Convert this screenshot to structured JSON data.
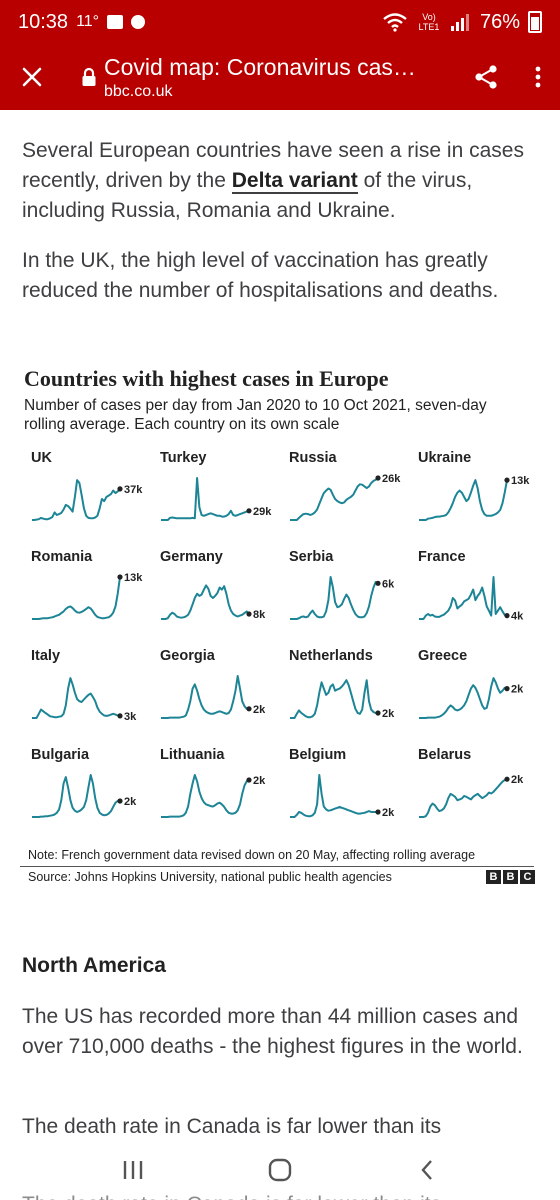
{
  "status_bar": {
    "time": "10:38",
    "temperature": "11°",
    "network": "Vo) LTE1",
    "battery": "76%"
  },
  "toolbar": {
    "title": "Covid map: Coronavirus cases, deaths and vaccinations by country",
    "url": "bbc.co.uk"
  },
  "article": {
    "para1_part1": "Several European countries have seen a rise in cases recently, driven by the ",
    "para1_link": "Delta variant",
    "para1_part2": " of the virus, including Russia, Romania and Ukraine.",
    "para2": "In the UK, the high level of vaccination has greatly reduced the number of hospitalisations and deaths.",
    "section_heading": "North America",
    "para3": "The US has recorded more than 44 million cases and over 710,000 deaths - the highest figures in the world.",
    "para4": "The death rate in Canada is far lower than its",
    "para4_overlap": "The death rate in Canada is far lower than its"
  },
  "chart": {
    "title": "Countries with highest cases in Europe",
    "subtitle": "Number of cases per day from Jan 2020 to 10 Oct 2021, seven-day rolling average. Each country on its own scale",
    "note": "Note: French government data revised down on 20 May, affecting rolling average",
    "source": "Source: Johns Hopkins University, national public health agencies",
    "logo_letters": [
      "B",
      "B",
      "C"
    ],
    "line_color": "#1d8596"
  },
  "chart_data": {
    "type": "line",
    "title": "Countries with highest cases in Europe",
    "subtitle": "Number of cases per day from Jan 2020 to 10 Oct 2021, seven-day rolling average. Each country on its own scale",
    "x_range": [
      "Jan 2020",
      "10 Oct 2021"
    ],
    "series": [
      {
        "name": "UK",
        "latest_label": "37k",
        "latest_value": 37000,
        "shape": [
          0,
          0,
          1,
          2,
          5,
          3,
          2,
          2,
          4,
          7,
          18,
          12,
          14,
          17,
          25,
          36,
          33,
          27,
          20,
          55,
          95,
          88,
          60,
          28,
          10,
          5,
          4,
          4,
          6,
          10,
          28,
          50,
          45,
          55,
          58,
          62,
          70,
          64,
          68,
          74
        ]
      },
      {
        "name": "Turkey",
        "latest_label": "29k",
        "latest_value": 29000,
        "shape": [
          0,
          0,
          0,
          0,
          5,
          6,
          5,
          4,
          4,
          4,
          4,
          4,
          4,
          4,
          5,
          4,
          100,
          30,
          12,
          10,
          12,
          14,
          16,
          14,
          12,
          10,
          10,
          8,
          8,
          10,
          14,
          22,
          12,
          10,
          12,
          14,
          16,
          18,
          20,
          22
        ]
      },
      {
        "name": "Russia",
        "latest_label": "26k",
        "latest_value": 26000,
        "shape": [
          0,
          0,
          0,
          0,
          5,
          10,
          14,
          15,
          14,
          12,
          14,
          18,
          25,
          38,
          52,
          64,
          70,
          75,
          72,
          60,
          50,
          45,
          42,
          40,
          42,
          48,
          52,
          55,
          60,
          70,
          80,
          85,
          84,
          80,
          76,
          80,
          88,
          93,
          96,
          100
        ]
      },
      {
        "name": "Ukraine",
        "latest_label": "13k",
        "latest_value": 13000,
        "shape": [
          0,
          0,
          0,
          0,
          3,
          4,
          5,
          7,
          8,
          8,
          9,
          10,
          12,
          18,
          28,
          40,
          55,
          65,
          70,
          65,
          55,
          45,
          50,
          65,
          82,
          95,
          75,
          45,
          24,
          14,
          10,
          10,
          10,
          12,
          14,
          18,
          24,
          40,
          65,
          95
        ]
      },
      {
        "name": "Romania",
        "latest_label": "13k",
        "latest_value": 13000,
        "shape": [
          0,
          0,
          0,
          0,
          1,
          2,
          2,
          2,
          3,
          4,
          6,
          8,
          10,
          14,
          18,
          24,
          28,
          30,
          26,
          20,
          16,
          15,
          17,
          20,
          24,
          28,
          25,
          18,
          10,
          5,
          3,
          2,
          2,
          3,
          4,
          8,
          15,
          30,
          60,
          100
        ]
      },
      {
        "name": "Germany",
        "latest_label": "8k",
        "latest_value": 8000,
        "shape": [
          0,
          0,
          0,
          2,
          10,
          15,
          12,
          6,
          4,
          3,
          4,
          6,
          10,
          20,
          35,
          50,
          60,
          55,
          58,
          70,
          80,
          72,
          55,
          50,
          55,
          62,
          75,
          70,
          78,
          60,
          35,
          20,
          12,
          8,
          6,
          8,
          10,
          14,
          18,
          12
        ]
      },
      {
        "name": "Serbia",
        "latest_label": "6k",
        "latest_value": 6000,
        "shape": [
          0,
          0,
          0,
          0,
          2,
          5,
          6,
          4,
          6,
          14,
          20,
          12,
          6,
          4,
          4,
          6,
          18,
          45,
          100,
          75,
          40,
          28,
          30,
          35,
          48,
          58,
          50,
          35,
          22,
          12,
          6,
          4,
          4,
          6,
          14,
          30,
          55,
          75,
          88,
          85
        ]
      },
      {
        "name": "France",
        "latest_label": "4k",
        "latest_value": 4000,
        "shape": [
          0,
          0,
          0,
          8,
          12,
          8,
          10,
          6,
          5,
          5,
          8,
          10,
          15,
          20,
          30,
          50,
          44,
          25,
          30,
          34,
          42,
          45,
          48,
          58,
          70,
          45,
          55,
          62,
          75,
          55,
          30,
          20,
          8,
          100,
          12,
          20,
          28,
          18,
          10,
          8
        ]
      },
      {
        "name": "Italy",
        "latest_label": "3k",
        "latest_value": 3000,
        "shape": [
          0,
          0,
          0,
          10,
          20,
          16,
          12,
          8,
          4,
          3,
          2,
          2,
          3,
          4,
          10,
          30,
          70,
          95,
          80,
          60,
          45,
          40,
          38,
          44,
          50,
          55,
          58,
          50,
          40,
          25,
          15,
          10,
          6,
          5,
          6,
          8,
          10,
          8,
          6,
          5
        ]
      },
      {
        "name": "Georgia",
        "latest_label": "2k",
        "latest_value": 2000,
        "shape": [
          0,
          0,
          0,
          0,
          1,
          1,
          1,
          1,
          1,
          2,
          3,
          6,
          20,
          40,
          70,
          80,
          65,
          45,
          30,
          20,
          15,
          12,
          10,
          10,
          12,
          14,
          16,
          14,
          12,
          10,
          12,
          20,
          40,
          65,
          100,
          70,
          40,
          28,
          22,
          22
        ]
      },
      {
        "name": "Netherlands",
        "latest_label": "2k",
        "latest_value": 2000,
        "shape": [
          0,
          0,
          0,
          10,
          18,
          12,
          8,
          4,
          2,
          2,
          4,
          10,
          30,
          60,
          85,
          70,
          55,
          60,
          75,
          80,
          65,
          68,
          70,
          75,
          82,
          90,
          78,
          60,
          40,
          22,
          12,
          10,
          20,
          60,
          90,
          40,
          20,
          14,
          12,
          12
        ]
      },
      {
        "name": "Greece",
        "latest_label": "2k",
        "latest_value": 2000,
        "shape": [
          0,
          0,
          0,
          0,
          1,
          1,
          1,
          1,
          2,
          3,
          6,
          10,
          16,
          24,
          30,
          26,
          20,
          18,
          20,
          24,
          30,
          40,
          55,
          70,
          78,
          72,
          60,
          45,
          30,
          22,
          24,
          45,
          75,
          95,
          85,
          70,
          60,
          65,
          72,
          70
        ]
      },
      {
        "name": "Bulgaria",
        "latest_label": "2k",
        "latest_value": 2000,
        "shape": [
          0,
          0,
          0,
          0,
          1,
          1,
          2,
          2,
          3,
          4,
          6,
          10,
          18,
          40,
          80,
          95,
          70,
          40,
          22,
          15,
          12,
          14,
          18,
          24,
          40,
          70,
          100,
          80,
          45,
          22,
          10,
          6,
          4,
          5,
          8,
          14,
          24,
          34,
          38,
          38
        ]
      },
      {
        "name": "Lithuania",
        "latest_label": "2k",
        "latest_value": 2000,
        "shape": [
          0,
          0,
          0,
          0,
          1,
          1,
          1,
          1,
          1,
          2,
          4,
          10,
          25,
          55,
          80,
          100,
          85,
          60,
          45,
          35,
          30,
          28,
          26,
          25,
          28,
          32,
          34,
          30,
          24,
          16,
          10,
          8,
          8,
          10,
          16,
          30,
          55,
          75,
          85,
          88
        ]
      },
      {
        "name": "Belgium",
        "latest_label": "2k",
        "latest_value": 2000,
        "shape": [
          0,
          0,
          0,
          5,
          12,
          10,
          6,
          3,
          2,
          2,
          4,
          10,
          30,
          100,
          55,
          25,
          18,
          15,
          16,
          18,
          20,
          22,
          24,
          22,
          20,
          18,
          16,
          14,
          12,
          10,
          8,
          8,
          9,
          10,
          12,
          14,
          12,
          12,
          12,
          12
        ]
      },
      {
        "name": "Belarus",
        "latest_label": "2k",
        "latest_value": 2000,
        "shape": [
          0,
          0,
          0,
          2,
          10,
          25,
          32,
          28,
          20,
          14,
          16,
          20,
          30,
          45,
          55,
          52,
          48,
          40,
          42,
          44,
          50,
          48,
          45,
          42,
          48,
          52,
          55,
          50,
          45,
          48,
          52,
          58,
          56,
          60,
          66,
          72,
          78,
          84,
          88,
          90
        ]
      }
    ]
  },
  "icons": {
    "close": "close-icon",
    "lock": "lock-icon",
    "share": "share-icon",
    "menu": "more-vert-icon",
    "recents": "recents-icon",
    "home": "home-icon",
    "back": "back-icon"
  }
}
